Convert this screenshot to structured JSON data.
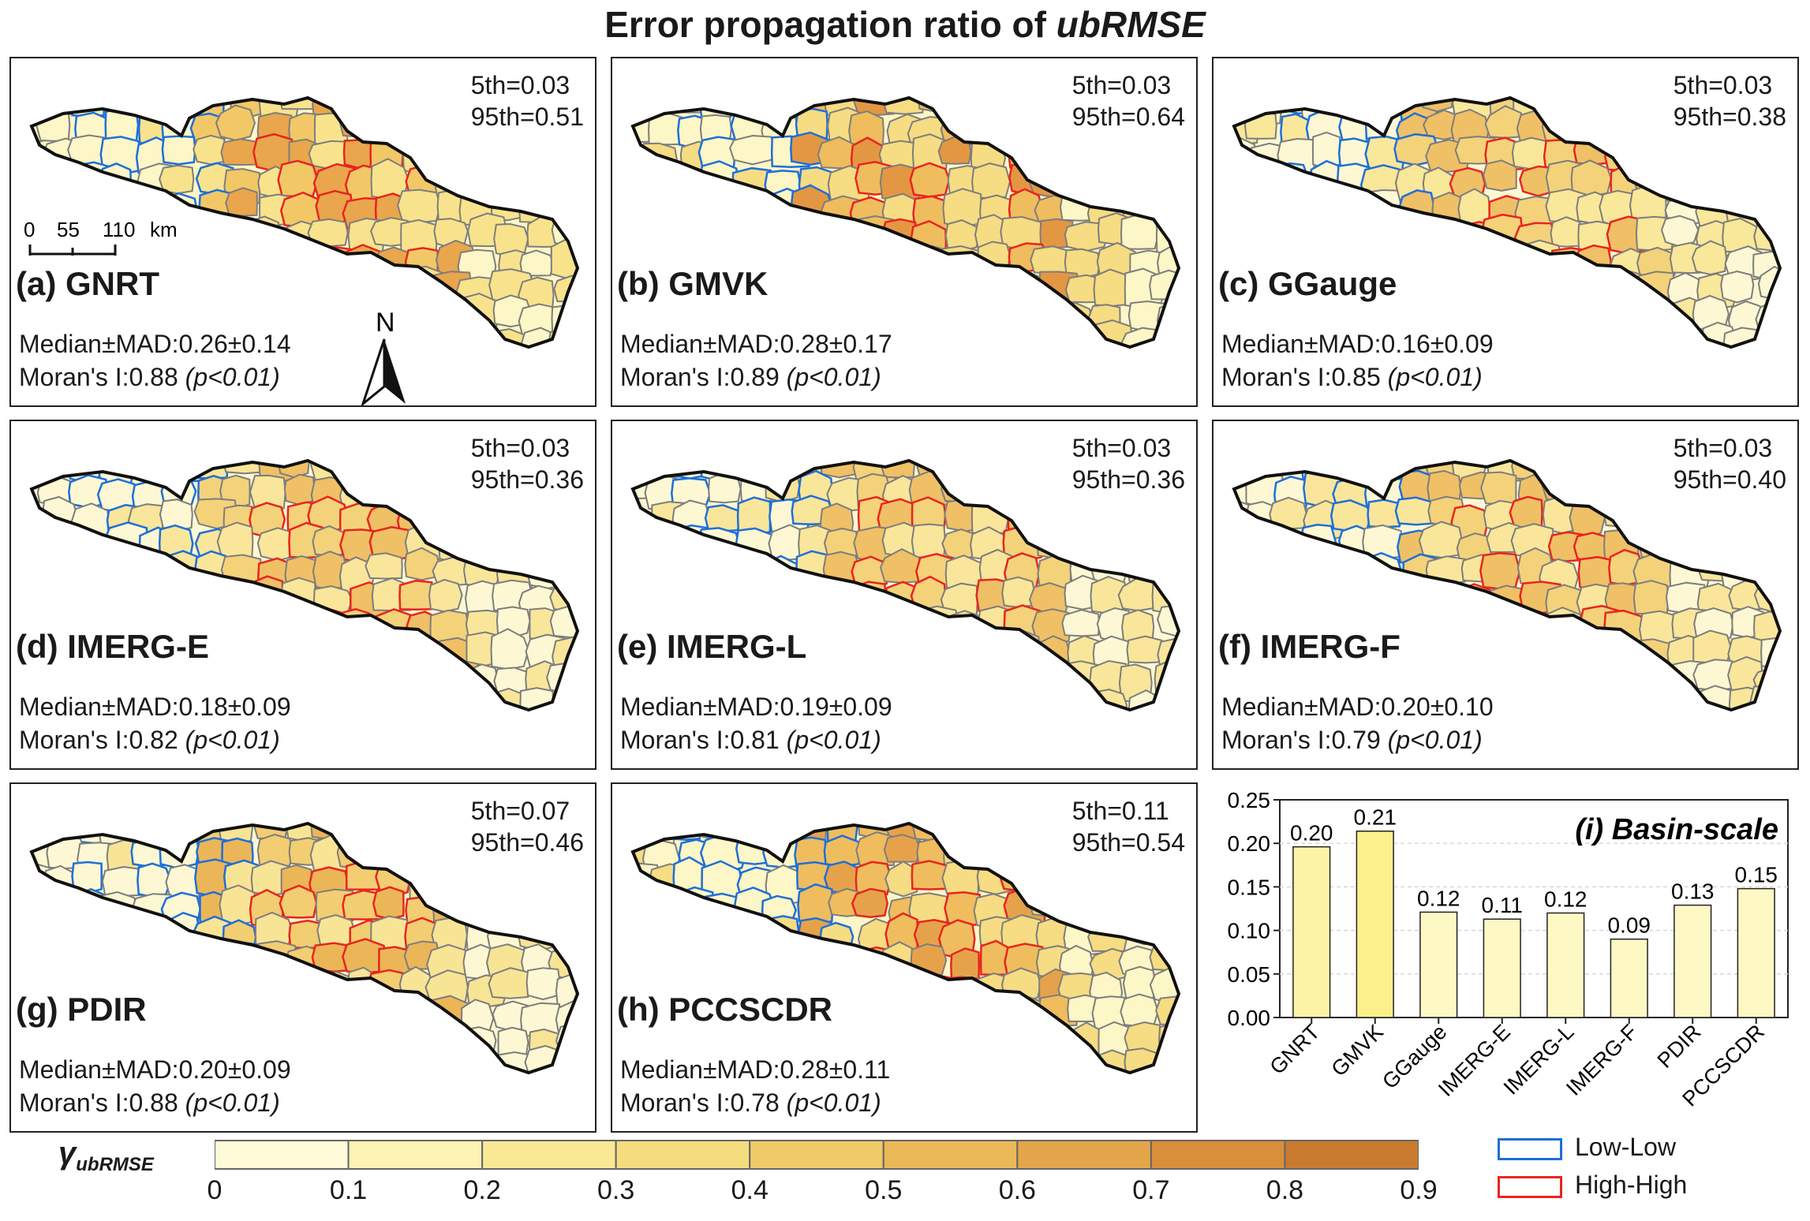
{
  "title_main": "Error propagation ratio of ",
  "title_italic": "ubRMSE",
  "scale_bar": {
    "labels": [
      "0",
      "55",
      "110",
      "km"
    ]
  },
  "north_label": "N",
  "panels": [
    {
      "label": "(a) GNRT",
      "p5": "5th=0.03",
      "p95": "95th=0.51",
      "median": "Median±MAD:0.26±0.14",
      "moran": "Moran's I:0.88",
      "pval": "(p<0.01)"
    },
    {
      "label": "(b) GMVK",
      "p5": "5th=0.03",
      "p95": "95th=0.64",
      "median": "Median±MAD:0.28±0.17",
      "moran": "Moran's I:0.89",
      "pval": "(p<0.01)"
    },
    {
      "label": "(c) GGauge",
      "p5": "5th=0.03",
      "p95": "95th=0.38",
      "median": "Median±MAD:0.16±0.09",
      "moran": "Moran's I:0.85",
      "pval": "(p<0.01)"
    },
    {
      "label": "(d) IMERG-E",
      "p5": "5th=0.03",
      "p95": "95th=0.36",
      "median": "Median±MAD:0.18±0.09",
      "moran": "Moran's I:0.82",
      "pval": "(p<0.01)"
    },
    {
      "label": "(e) IMERG-L",
      "p5": "5th=0.03",
      "p95": "95th=0.36",
      "median": "Median±MAD:0.19±0.09",
      "moran": "Moran's I:0.81",
      "pval": "(p<0.01)"
    },
    {
      "label": "(f) IMERG-F",
      "p5": "5th=0.03",
      "p95": "95th=0.40",
      "median": "Median±MAD:0.20±0.10",
      "moran": "Moran's I:0.79",
      "pval": "(p<0.01)"
    },
    {
      "label": "(g) PDIR",
      "p5": "5th=0.07",
      "p95": "95th=0.46",
      "median": "Median±MAD:0.20±0.09",
      "moran": "Moran's I:0.88",
      "pval": "(p<0.01)"
    },
    {
      "label": "(h) PCCSCDR",
      "p5": "5th=0.11",
      "p95": "95th=0.54",
      "median": "Median±MAD:0.28±0.11",
      "moran": "Moran's I:0.78",
      "pval": "(p<0.01)"
    }
  ],
  "chart_data": {
    "type": "bar",
    "title": "(i) Basin-scale",
    "categories": [
      "GNRT",
      "GMVK",
      "GGauge",
      "IMERG-E",
      "IMERG-L",
      "IMERG-F",
      "PDIR",
      "PCCSCDR"
    ],
    "values": [
      0.196,
      0.214,
      0.121,
      0.113,
      0.12,
      0.09,
      0.129,
      0.148
    ],
    "data_labels": [
      "0.20",
      "0.21",
      "0.12",
      "0.11",
      "0.12",
      "0.09",
      "0.13",
      "0.15"
    ],
    "ylim": [
      0,
      0.25
    ],
    "yticks": [
      "0.00",
      "0.05",
      "0.10",
      "0.15",
      "0.20",
      "0.25"
    ],
    "grid": true,
    "xlabel": "",
    "ylabel": ""
  },
  "colorbar": {
    "ticks": [
      "0",
      "0.1",
      "0.2",
      "0.3",
      "0.4",
      "0.5",
      "0.6",
      "0.7",
      "0.8",
      "0.9"
    ],
    "colors": [
      "#fefbd8",
      "#fcf3b4",
      "#f9e995",
      "#f5dc7e",
      "#f1ca68",
      "#ebb857",
      "#e5a54a",
      "#d98f3a",
      "#c87b2e"
    ]
  },
  "legend": {
    "low_low": "Low-Low",
    "low_low_color": "#1e6fd9",
    "high_high": "High-High",
    "high_high_color": "#e8251f"
  }
}
